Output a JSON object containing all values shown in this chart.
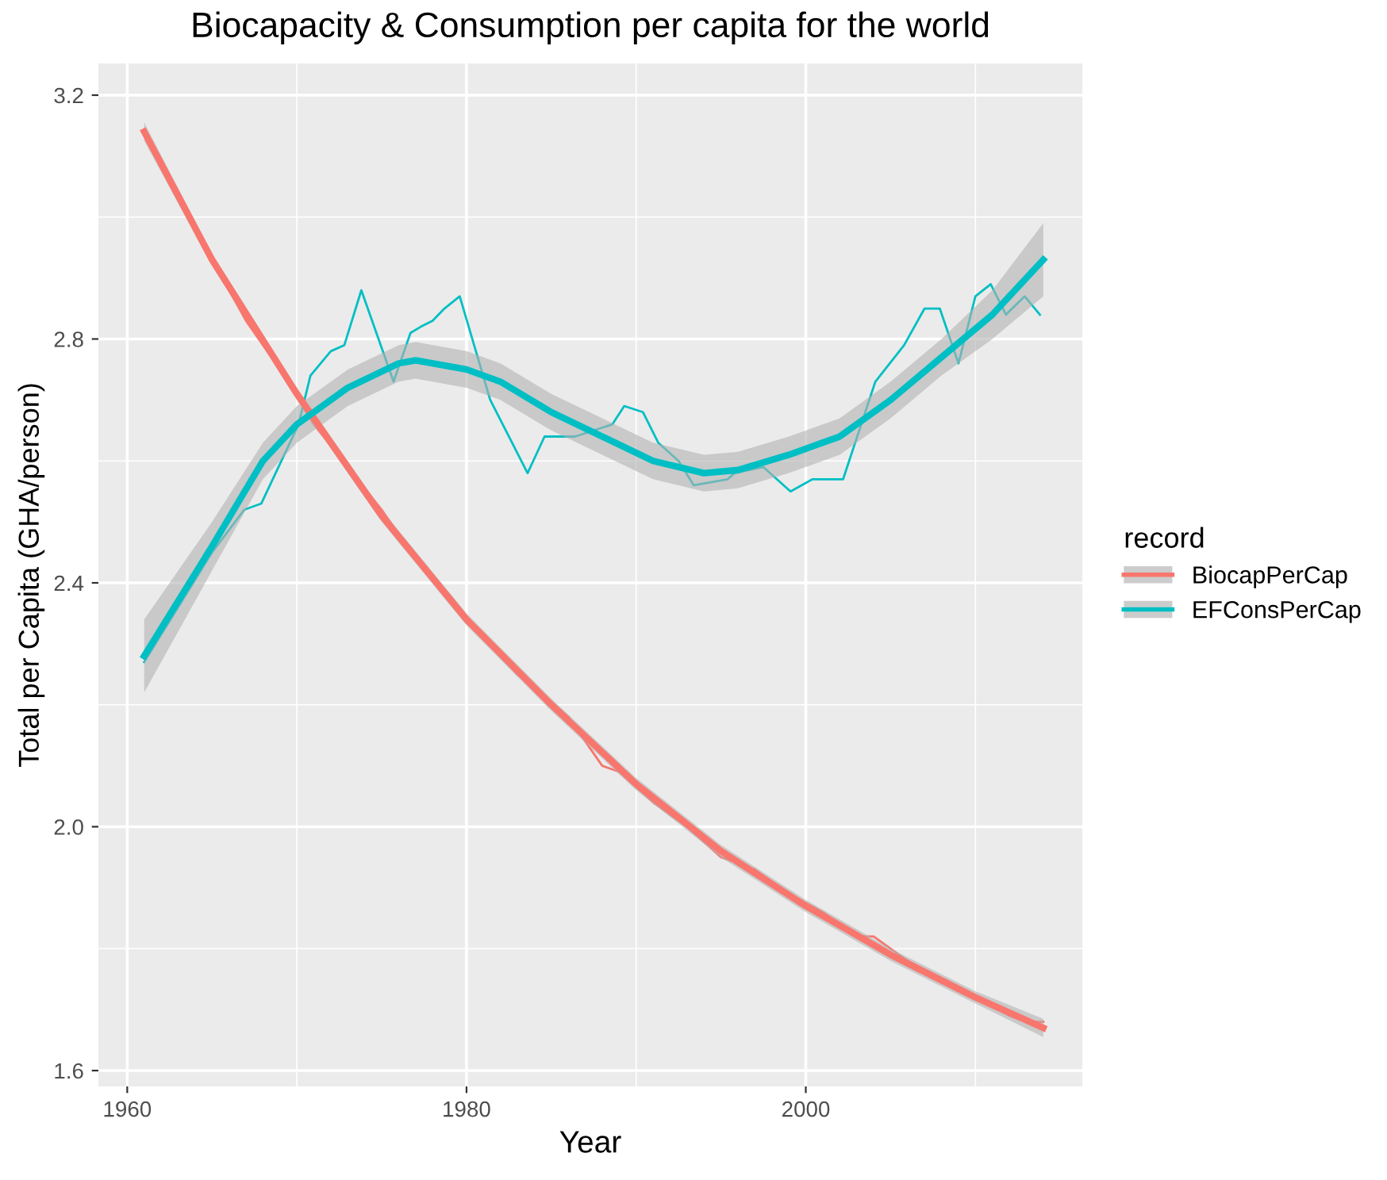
{
  "chart_data": {
    "type": "line",
    "title": "Biocapacity & Consumption per capita for the world",
    "xlabel": "Year",
    "ylabel": "Total per Capita (GHA/person)",
    "legend_title": "record",
    "legend": "right",
    "grid": true,
    "xlim": [
      1958.3,
      2016.3
    ],
    "ylim": [
      1.574,
      3.252
    ],
    "xticks": [
      1960,
      {
        "value": 1970,
        "label": null
      },
      1980,
      {
        "value": 1990,
        "label": null
      },
      2000,
      {
        "value": 2010,
        "label": null
      }
    ],
    "yticks": [
      1.6,
      {
        "value": 1.8,
        "label": null
      },
      {
        "value": 2.0,
        "label": "2.0"
      },
      {
        "value": 2.2,
        "label": null
      },
      2.4,
      {
        "value": 2.6,
        "label": null
      },
      2.8,
      {
        "value": 3.0,
        "label": null
      },
      3.2
    ],
    "series": [
      {
        "color": "#f8766d",
        "x": [
          1961,
          1963,
          1965,
          1967,
          1969,
          1971,
          1973,
          1975,
          1977,
          1979,
          1981,
          1983,
          1984,
          1986,
          1988,
          1989,
          1991,
          1993,
          1995,
          1997,
          1999,
          2001,
          2003,
          2004,
          2006,
          2008,
          2010,
          2012,
          2013,
          2014
        ],
        "values": [
          3.14,
          3.03,
          2.93,
          2.83,
          2.75,
          2.66,
          2.59,
          2.52,
          2.44,
          2.38,
          2.31,
          2.25,
          2.23,
          2.18,
          2.1,
          2.09,
          2.04,
          2.0,
          1.95,
          1.93,
          1.89,
          1.86,
          1.82,
          1.82,
          1.78,
          1.75,
          1.72,
          1.69,
          1.68,
          1.68
        ]
      },
      {
        "color": "#00bfc4",
        "x": [
          1961,
          1965,
          1966.9,
          1967.9,
          1970.1,
          1970.8,
          1972,
          1972.8,
          1973.8,
          1975.7,
          1976.7,
          1977.3,
          1978,
          1978.7,
          1979.6,
          1981.4,
          1983.6,
          1984.6,
          1986.4,
          1988.6,
          1989.3,
          1990.4,
          1991.3,
          1992.5,
          1993.4,
          1995.4,
          1995.8,
          1997.5,
          1999.1,
          2000.4,
          2002.2,
          2004.1,
          2005.8,
          2007,
          2007.9,
          2009,
          2010,
          2010.9,
          2011.8,
          2012.9,
          2013.8
        ],
        "values": [
          2.27,
          2.45,
          2.52,
          2.53,
          2.66,
          2.74,
          2.78,
          2.79,
          2.88,
          2.73,
          2.81,
          2.82,
          2.83,
          2.85,
          2.87,
          2.7,
          2.58,
          2.64,
          2.64,
          2.66,
          2.69,
          2.68,
          2.63,
          2.6,
          2.56,
          2.57,
          2.58,
          2.59,
          2.55,
          2.57,
          2.57,
          2.73,
          2.79,
          2.85,
          2.85,
          2.76,
          2.87,
          2.89,
          2.84,
          2.87,
          2.84
        ]
      },
      {
        "name": "BiocapPerCap",
        "color": "#f8766d",
        "x": [
          1961,
          1965,
          1970,
          1975,
          1980,
          1985,
          1990,
          1995,
          2000,
          2005,
          2010,
          2014
        ],
        "values": [
          3.14,
          2.93,
          2.71,
          2.51,
          2.34,
          2.2,
          2.07,
          1.96,
          1.87,
          1.79,
          1.72,
          1.67
        ],
        "lower": [
          3.125,
          2.92,
          2.7,
          2.5,
          2.33,
          2.19,
          2.06,
          1.95,
          1.86,
          1.78,
          1.71,
          1.655
        ],
        "upper": [
          3.155,
          2.94,
          2.72,
          2.52,
          2.35,
          2.21,
          2.08,
          1.97,
          1.88,
          1.8,
          1.73,
          1.685
        ]
      },
      {
        "name": "EFConsPerCap",
        "color": "#00bfc4",
        "x": [
          1961,
          1965,
          1968,
          1970,
          1973,
          1976,
          1977,
          1980,
          1982,
          1985,
          1988,
          1991,
          1994,
          1996,
          1999,
          2002,
          2005,
          2008,
          2011,
          2014
        ],
        "values": [
          2.28,
          2.46,
          2.6,
          2.66,
          2.72,
          2.76,
          2.765,
          2.75,
          2.73,
          2.68,
          2.64,
          2.6,
          2.58,
          2.585,
          2.61,
          2.64,
          2.7,
          2.77,
          2.84,
          2.93
        ],
        "lower": [
          2.22,
          2.42,
          2.57,
          2.63,
          2.69,
          2.73,
          2.735,
          2.72,
          2.7,
          2.65,
          2.61,
          2.57,
          2.55,
          2.555,
          2.58,
          2.61,
          2.67,
          2.74,
          2.8,
          2.87
        ],
        "upper": [
          2.34,
          2.5,
          2.63,
          2.69,
          2.75,
          2.79,
          2.795,
          2.78,
          2.76,
          2.71,
          2.67,
          2.63,
          2.61,
          2.615,
          2.64,
          2.67,
          2.73,
          2.8,
          2.88,
          2.99
        ]
      }
    ]
  }
}
